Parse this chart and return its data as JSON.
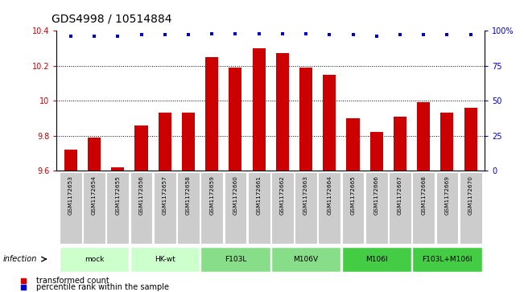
{
  "title": "GDS4998 / 10514884",
  "samples": [
    "GSM1172653",
    "GSM1172654",
    "GSM1172655",
    "GSM1172656",
    "GSM1172657",
    "GSM1172658",
    "GSM1172659",
    "GSM1172660",
    "GSM1172661",
    "GSM1172662",
    "GSM1172663",
    "GSM1172664",
    "GSM1172665",
    "GSM1172666",
    "GSM1172667",
    "GSM1172668",
    "GSM1172669",
    "GSM1172670"
  ],
  "bar_values": [
    9.72,
    9.79,
    9.62,
    9.86,
    9.93,
    9.93,
    10.25,
    10.19,
    10.3,
    10.27,
    10.19,
    10.15,
    9.9,
    9.82,
    9.91,
    9.99,
    9.93,
    9.96
  ],
  "percentile_values": [
    96,
    96,
    96,
    97,
    97,
    97,
    98,
    98,
    98,
    98,
    98,
    97,
    97,
    96,
    97,
    97,
    97,
    97
  ],
  "group_defs": [
    {
      "start": 0,
      "end": 2,
      "label": "mock",
      "color": "#ccffcc"
    },
    {
      "start": 3,
      "end": 5,
      "label": "HK-wt",
      "color": "#ccffcc"
    },
    {
      "start": 6,
      "end": 8,
      "label": "F103L",
      "color": "#88dd88"
    },
    {
      "start": 9,
      "end": 11,
      "label": "M106V",
      "color": "#88dd88"
    },
    {
      "start": 12,
      "end": 14,
      "label": "M106I",
      "color": "#44cc44"
    },
    {
      "start": 15,
      "end": 17,
      "label": "F103L+M106I",
      "color": "#44cc44"
    }
  ],
  "ylim_left": [
    9.6,
    10.4
  ],
  "ylim_right": [
    0,
    100
  ],
  "bar_color": "#cc0000",
  "dot_color": "#0000cc",
  "tick_color_left": "#cc0000",
  "tick_color_right": "#0000cc",
  "sample_box_color": "#cccccc",
  "title_fontsize": 10,
  "legend_items": [
    {
      "label": "transformed count",
      "color": "#cc0000"
    },
    {
      "label": "percentile rank within the sample",
      "color": "#0000cc"
    }
  ]
}
